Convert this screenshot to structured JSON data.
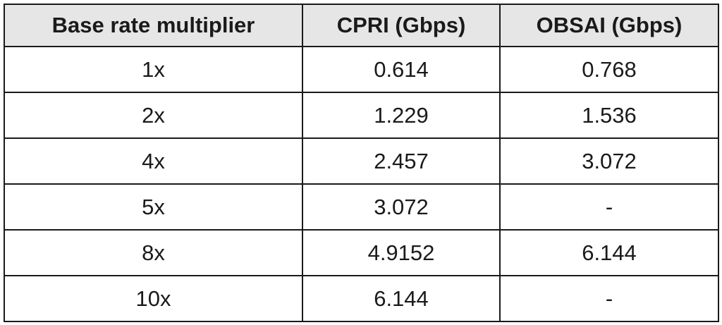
{
  "table": {
    "header": [
      "Base rate multiplier",
      "CPRI (Gbps)",
      "OBSAI (Gbps)"
    ],
    "rows": [
      [
        "1x",
        "0.614",
        "0.768"
      ],
      [
        "2x",
        "1.229",
        "1.536"
      ],
      [
        "4x",
        "2.457",
        "3.072"
      ],
      [
        "5x",
        "3.072",
        "-"
      ],
      [
        "8x",
        "4.9152",
        "6.144"
      ],
      [
        "10x",
        "6.144",
        "-"
      ]
    ]
  }
}
